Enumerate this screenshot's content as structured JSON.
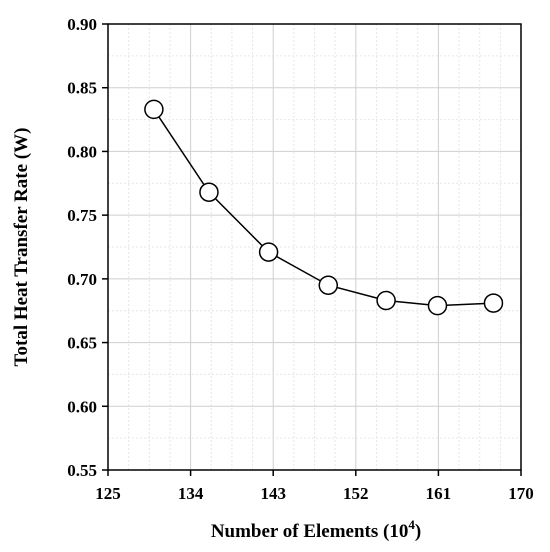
{
  "chart_data": {
    "type": "line",
    "xlabel": "Number of Elements (10",
    "xlabel_sup": "4",
    "xlabel_end": ")",
    "ylabel": "Total Heat Transfer Rate (W)",
    "xlim": [
      125,
      170
    ],
    "ylim": [
      0.55,
      0.9
    ],
    "x_ticks": [
      "125",
      "134",
      "143",
      "152",
      "161",
      "170"
    ],
    "y_ticks": [
      "0.55",
      "0.60",
      "0.65",
      "0.70",
      "0.75",
      "0.80",
      "0.85",
      "0.90"
    ],
    "grid": true,
    "series": [
      {
        "x": [
          130.0,
          136.0,
          142.5,
          149.0,
          155.3,
          160.9,
          167.0
        ],
        "values": [
          0.833,
          0.768,
          0.721,
          0.695,
          0.683,
          0.679,
          0.681
        ]
      }
    ]
  }
}
